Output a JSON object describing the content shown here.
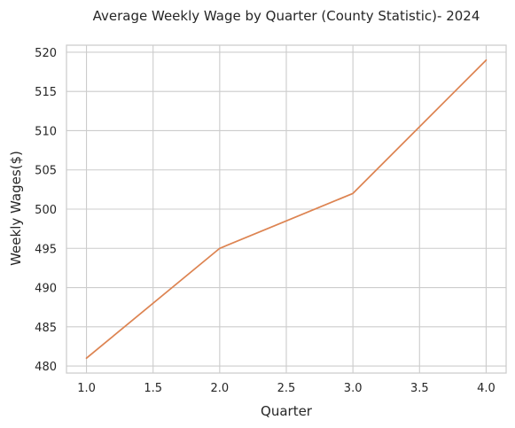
{
  "chart_data": {
    "type": "line",
    "title": "Average Weekly Wage by Quarter (County Statistic)- 2024",
    "xlabel": "Quarter",
    "ylabel": "Weekly Wages($)",
    "x": [
      1.0,
      2.0,
      3.0,
      4.0
    ],
    "series": [
      {
        "values": [
          481,
          495,
          502,
          519
        ],
        "color": "#dd8452"
      }
    ],
    "xlim": [
      0.85,
      4.15
    ],
    "ylim": [
      479.1,
      520.9
    ],
    "x_ticks": [
      1.0,
      1.5,
      2.0,
      2.5,
      3.0,
      3.5,
      4.0
    ],
    "x_tick_labels": [
      "1.0",
      "1.5",
      "2.0",
      "2.5",
      "3.0",
      "3.5",
      "4.0"
    ],
    "y_ticks": [
      480,
      485,
      490,
      495,
      500,
      505,
      510,
      515,
      520
    ],
    "y_tick_labels": [
      "480",
      "485",
      "490",
      "495",
      "500",
      "505",
      "510",
      "515",
      "520"
    ],
    "grid": true,
    "grid_color": "#cccccc",
    "spine_color": "#cccccc"
  }
}
